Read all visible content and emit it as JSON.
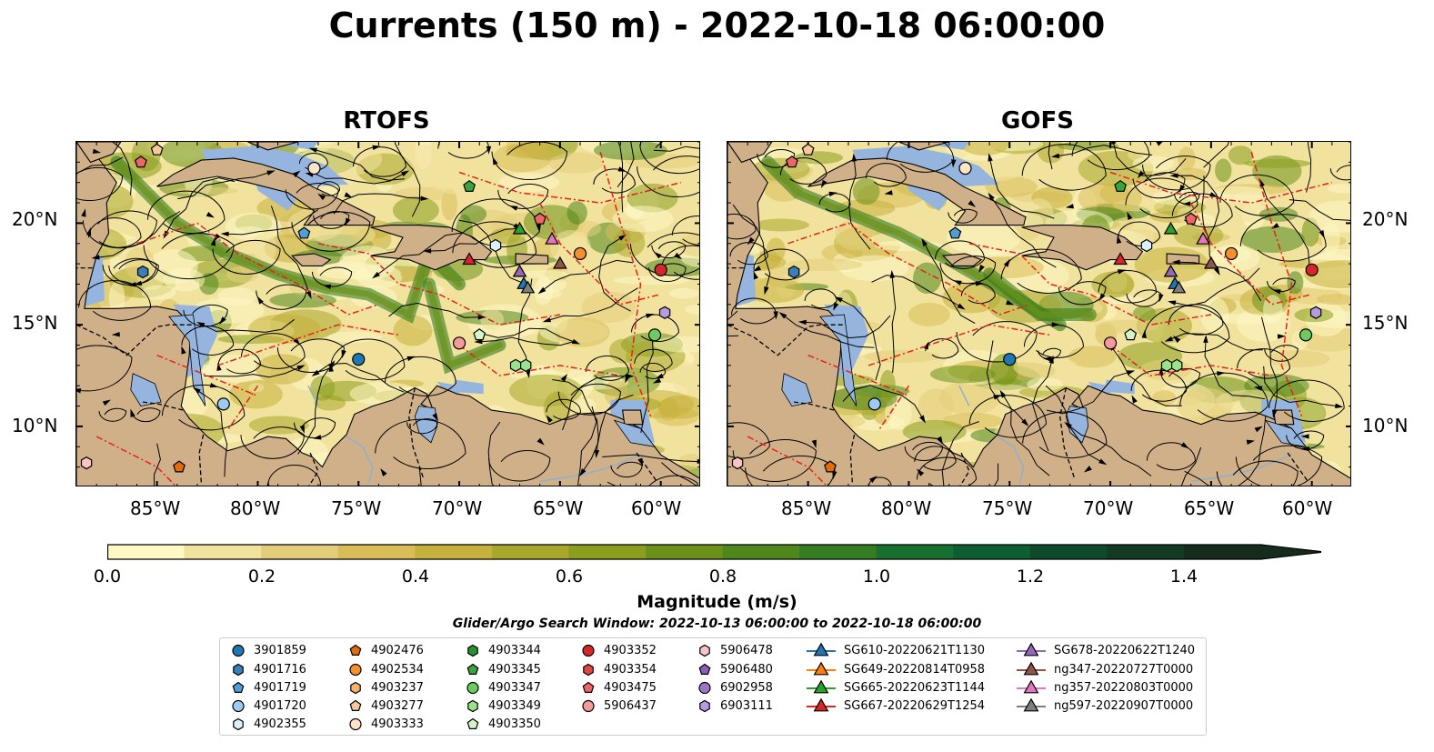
{
  "title": "Currents (150 m) - 2022-10-18 06:00:00",
  "panels": [
    {
      "name": "RTOFS"
    },
    {
      "name": "GOFS"
    }
  ],
  "map": {
    "lon_range": [
      -89,
      -58
    ],
    "lat_range": [
      7,
      24
    ],
    "lon_ticks": [
      "85°W",
      "80°W",
      "75°W",
      "70°W",
      "65°W",
      "60°W"
    ],
    "lat_ticks": [
      "20°N",
      "15°N",
      "10°N"
    ],
    "colors": {
      "land": "#cfb088",
      "shallow_water": "#95b5de",
      "coast": "#000000",
      "eez": "#e8201e",
      "border": "#000000",
      "river": "#8fb0cf"
    }
  },
  "colorbar": {
    "title": "Magnitude (m/s)",
    "min": 0.0,
    "max": 1.5,
    "extend": "max",
    "tick_labels": [
      "0.0",
      "0.2",
      "0.4",
      "0.6",
      "0.8",
      "1.0",
      "1.2",
      "1.4"
    ],
    "colors": [
      "#fdf8c4",
      "#f1e29d",
      "#e4cd7a",
      "#d8bd59",
      "#c6b13c",
      "#a9a82a",
      "#8b9e1e",
      "#6c9118",
      "#4f871c",
      "#347d22",
      "#17702f",
      "#0d5e30",
      "#0e4b2a",
      "#133a22",
      "#152c1c"
    ]
  },
  "search_window": "Glider/Argo Search Window: 2022-10-13 06:00:00 to 2022-10-18 06:00:00",
  "legend": [
    {
      "label": "3901859",
      "marker": "circle",
      "color": "#1f77b4"
    },
    {
      "label": "4901716",
      "marker": "hexagon",
      "color": "#3a7fb8"
    },
    {
      "label": "4901719",
      "marker": "pentagon",
      "color": "#4f9fd6"
    },
    {
      "label": "4901720",
      "marker": "circle",
      "color": "#9dcaf0"
    },
    {
      "label": "4902355",
      "marker": "hexagon",
      "color": "#dcefff"
    },
    {
      "label": "4902476",
      "marker": "pentagon",
      "color": "#e36c0a"
    },
    {
      "label": "4902534",
      "marker": "circle",
      "color": "#f5902e"
    },
    {
      "label": "4903237",
      "marker": "hexagon",
      "color": "#f9b16c"
    },
    {
      "label": "4903277",
      "marker": "pentagon",
      "color": "#fbc89a"
    },
    {
      "label": "4903333",
      "marker": "circle",
      "color": "#fde3c8"
    },
    {
      "label": "4903344",
      "marker": "hexagon",
      "color": "#2c8f2c"
    },
    {
      "label": "4903345",
      "marker": "pentagon",
      "color": "#3aa63a"
    },
    {
      "label": "4903347",
      "marker": "circle",
      "color": "#6ccb5f"
    },
    {
      "label": "4903349",
      "marker": "hexagon",
      "color": "#9be28d"
    },
    {
      "label": "4903350",
      "marker": "pentagon",
      "color": "#d5f7c8"
    },
    {
      "label": "4903352",
      "marker": "circle",
      "color": "#d62728"
    },
    {
      "label": "4903354",
      "marker": "hexagon",
      "color": "#e04545"
    },
    {
      "label": "4903475",
      "marker": "pentagon",
      "color": "#ee6666"
    },
    {
      "label": "5906437",
      "marker": "circle",
      "color": "#f59a9a"
    },
    {
      "label": "5906478",
      "marker": "hexagon",
      "color": "#f8c4c4"
    },
    {
      "label": "5906480",
      "marker": "pentagon",
      "color": "#8a5fb8"
    },
    {
      "label": "6902958",
      "marker": "circle",
      "color": "#9d75c9"
    },
    {
      "label": "6903111",
      "marker": "hexagon",
      "color": "#b59ce0"
    },
    {
      "label": "SG610-20220621T1130",
      "marker": "triangle-line",
      "color": "#1f77b4"
    },
    {
      "label": "SG649-20220814T0958",
      "marker": "triangle-line",
      "color": "#ff7f0e"
    },
    {
      "label": "SG665-20220623T1144",
      "marker": "triangle-line",
      "color": "#2ca02c"
    },
    {
      "label": "SG667-20220629T1254",
      "marker": "triangle-line",
      "color": "#d62728"
    },
    {
      "label": "SG678-20220622T1240",
      "marker": "triangle-line",
      "color": "#9467bd"
    },
    {
      "label": "ng347-20220727T0000",
      "marker": "triangle-line",
      "color": "#8c564b"
    },
    {
      "label": "ng357-20220803T0000",
      "marker": "triangle-line",
      "color": "#e377c2"
    },
    {
      "label": "ng597-20220907T0000",
      "marker": "triangle-line",
      "color": "#7f7f7f"
    }
  ],
  "platform_positions": [
    {
      "label": "4903475",
      "lon": -85.8,
      "lat": 23.0
    },
    {
      "label": "4903277",
      "lon": -85.0,
      "lat": 23.6
    },
    {
      "label": "4903333",
      "lon": -77.2,
      "lat": 22.7
    },
    {
      "label": "4903345",
      "lon": -69.5,
      "lat": 21.8
    },
    {
      "label": "4903475",
      "lon": -66.0,
      "lat": 20.2
    },
    {
      "label": "SG665-20220623T1144",
      "lon": -67.0,
      "lat": 19.7
    },
    {
      "label": "4901719",
      "lon": -77.7,
      "lat": 19.5
    },
    {
      "label": "4902355",
      "lon": -68.2,
      "lat": 18.9
    },
    {
      "label": "ng357-20220803T0000",
      "lon": -65.4,
      "lat": 19.2
    },
    {
      "label": "4902534",
      "lon": -64.0,
      "lat": 18.5
    },
    {
      "label": "SG667-20220629T1254",
      "lon": -69.5,
      "lat": 18.2
    },
    {
      "label": "ng347-20220727T0000",
      "lon": -65.0,
      "lat": 18.0
    },
    {
      "label": "SG678-20220622T1240",
      "lon": -67.0,
      "lat": 17.6
    },
    {
      "label": "SG610-20220621T1130",
      "lon": -66.8,
      "lat": 17.0
    },
    {
      "label": "ng597-20220907T0000",
      "lon": -66.6,
      "lat": 16.8
    },
    {
      "label": "4903352",
      "lon": -60.0,
      "lat": 17.7
    },
    {
      "label": "4901716",
      "lon": -85.7,
      "lat": 17.6
    },
    {
      "label": "6903111",
      "lon": -59.8,
      "lat": 15.6
    },
    {
      "label": "4903350",
      "lon": -69.0,
      "lat": 14.5
    },
    {
      "label": "5906437",
      "lon": -70.0,
      "lat": 14.1
    },
    {
      "label": "4903347",
      "lon": -60.3,
      "lat": 14.5
    },
    {
      "label": "3901859",
      "lon": -75.0,
      "lat": 13.3
    },
    {
      "label": "4903349",
      "lon": -67.2,
      "lat": 13.0
    },
    {
      "label": "4903349",
      "lon": -66.7,
      "lat": 13.0
    },
    {
      "label": "4901720",
      "lon": -81.7,
      "lat": 11.1
    },
    {
      "label": "5906478",
      "lon": -88.5,
      "lat": 8.2
    },
    {
      "label": "4902476",
      "lon": -83.9,
      "lat": 8.0
    }
  ]
}
